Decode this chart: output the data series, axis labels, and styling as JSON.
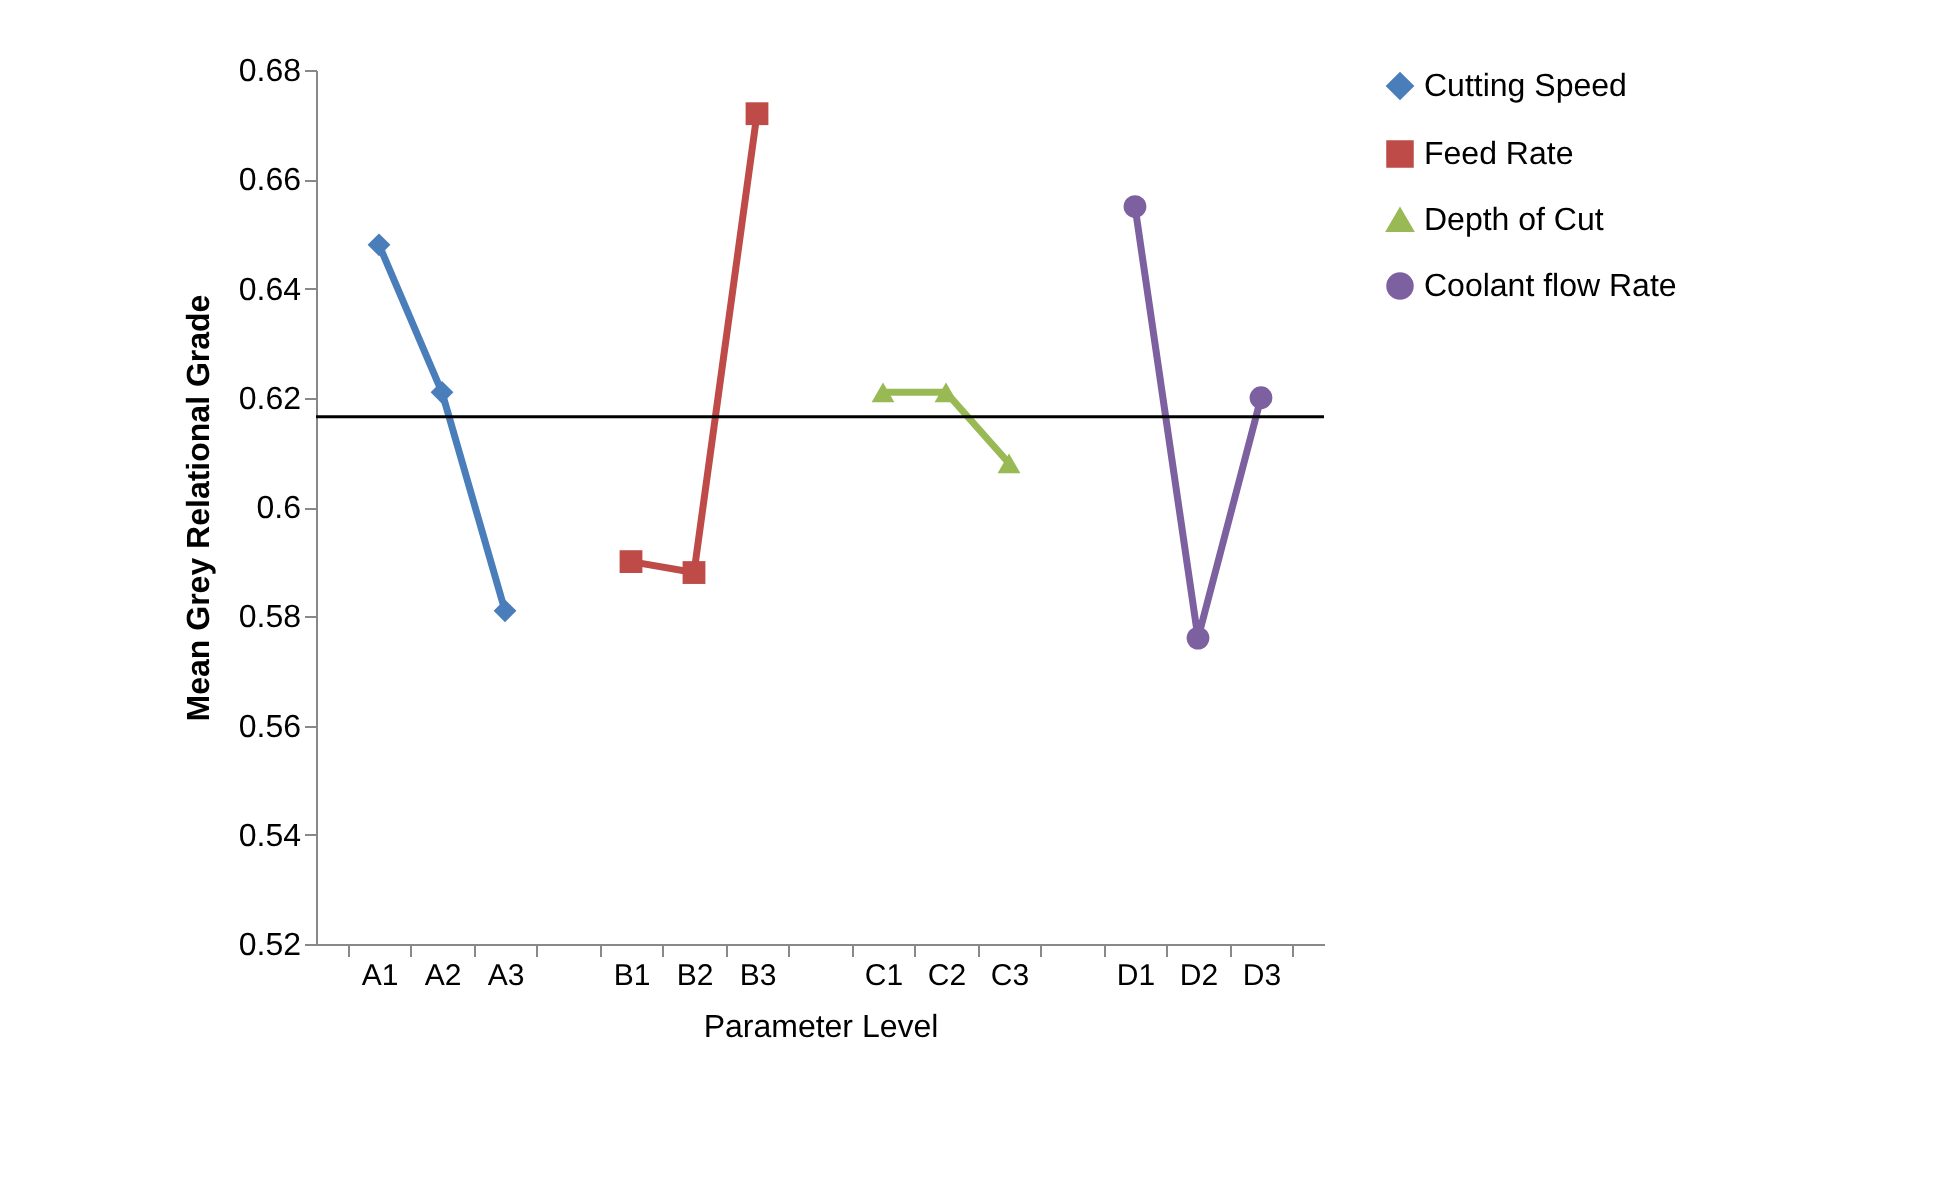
{
  "chart_data": {
    "type": "line",
    "xlabel": "Parameter Level",
    "ylabel": "Mean Grey Relational Grade",
    "categories": [
      "A1",
      "A2",
      "A3",
      null,
      "B1",
      "B2",
      "B3",
      null,
      "C1",
      "C2",
      "C3",
      null,
      "D1",
      "D2",
      "D3"
    ],
    "series": [
      {
        "name": "Cutting Speed",
        "color": "#4a7ebb",
        "marker": "diamond",
        "values": [
          0.648,
          0.621,
          0.581,
          null,
          null,
          null,
          null,
          null,
          null,
          null,
          null,
          null,
          null,
          null,
          null
        ]
      },
      {
        "name": "Feed Rate",
        "color": "#be4b48",
        "marker": "square",
        "values": [
          null,
          null,
          null,
          null,
          0.59,
          0.588,
          0.672,
          null,
          null,
          null,
          null,
          null,
          null,
          null,
          null
        ]
      },
      {
        "name": "Depth of Cut",
        "color": "#98b954",
        "marker": "triangle",
        "values": [
          null,
          null,
          null,
          null,
          null,
          null,
          null,
          null,
          0.621,
          0.621,
          0.608,
          null,
          null,
          null,
          null
        ]
      },
      {
        "name": "Coolant flow Rate",
        "color": "#7d60a0",
        "marker": "circle",
        "values": [
          null,
          null,
          null,
          null,
          null,
          null,
          null,
          null,
          null,
          null,
          null,
          null,
          0.655,
          0.576,
          0.62
        ]
      }
    ],
    "ylim": [
      0.52,
      0.68
    ],
    "yticks": [
      0.52,
      0.54,
      0.56,
      0.58,
      0.6,
      0.62,
      0.64,
      0.66,
      0.68
    ],
    "ref_lines": [
      {
        "axis": "y",
        "value": 0.6165,
        "color": "#000000"
      }
    ],
    "grid": false,
    "legend": "right"
  }
}
